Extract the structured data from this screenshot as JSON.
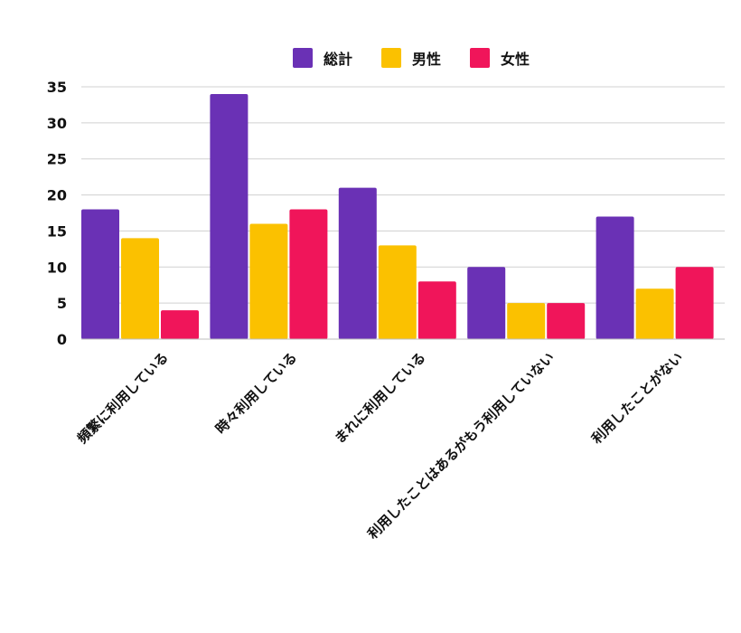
{
  "chart_data": {
    "type": "bar",
    "categories": [
      "頻繁に利用している",
      "時々利用している",
      "まれに利用している",
      "利用したことはあるがもう利用していない",
      "利用したことがない"
    ],
    "series": [
      {
        "name": "総計",
        "color": "#6a31b5",
        "values": [
          18,
          34,
          21,
          10,
          17
        ]
      },
      {
        "name": "男性",
        "color": "#fbc100",
        "values": [
          14,
          16,
          13,
          5,
          7
        ]
      },
      {
        "name": "女性",
        "color": "#f0155a",
        "values": [
          4,
          18,
          8,
          5,
          10
        ]
      }
    ],
    "yticks": [
      "0",
      "5",
      "10",
      "15",
      "20",
      "25",
      "30",
      "35"
    ],
    "ylim": [
      0,
      35
    ],
    "grid": true,
    "legend_position": "top-center"
  }
}
